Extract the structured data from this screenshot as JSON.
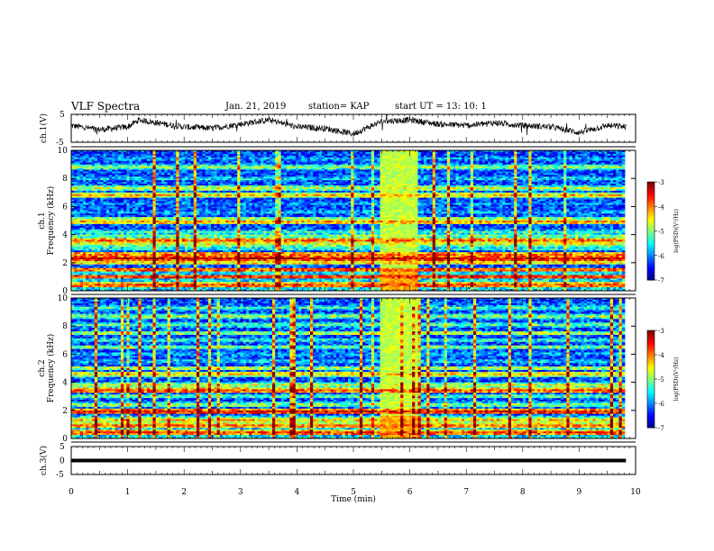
{
  "header": {
    "title": "VLF Spectra",
    "date": "Jan. 21, 2019",
    "station": "station= KAP",
    "start": "start  UT =  13: 10: 1"
  },
  "chart_data": [
    {
      "type": "line",
      "panel": "ch1-voltage",
      "ylabel": "ch.1(V)",
      "ylim": [
        -5,
        5
      ],
      "yticks": [
        "5",
        "-5"
      ],
      "xlim": [
        0,
        10
      ],
      "x_extent": [
        0,
        9.83
      ],
      "approx_series": {
        "x": [
          0,
          0.5,
          1,
          1.2,
          1.5,
          2,
          2.5,
          3,
          3.5,
          4,
          4.5,
          5,
          5.5,
          6,
          6.5,
          7,
          7.5,
          8,
          8.5,
          9,
          9.5,
          9.83
        ],
        "y": [
          1.0,
          -0.5,
          0.5,
          3.0,
          2.0,
          0.5,
          0.0,
          1.5,
          3.0,
          0.5,
          0.0,
          -2.0,
          2.5,
          3.0,
          1.5,
          1.0,
          2.0,
          1.0,
          0.5,
          -1.5,
          1.0,
          0.5
        ]
      }
    },
    {
      "type": "heatmap",
      "panel": "ch1-spectrogram",
      "ylabel": "ch.1",
      "ylabel2": "Frequency (kHz)",
      "xlim": [
        0,
        10
      ],
      "x_extent": [
        0,
        9.83
      ],
      "ylim": [
        0,
        10
      ],
      "yticks": [
        "0",
        "2",
        "4",
        "6",
        "8",
        "10"
      ],
      "color_scale": {
        "min": -7,
        "max": -3,
        "ticks": [
          "-3",
          "-4",
          "-5",
          "-6",
          "-7"
        ],
        "label": "log(PSD)(V²/Hz)"
      },
      "bright_window_min": [
        5.5,
        6.15
      ]
    },
    {
      "type": "heatmap",
      "panel": "ch2-spectrogram",
      "ylabel": "ch.2",
      "ylabel2": "Frequency (kHz)",
      "xlim": [
        0,
        10
      ],
      "x_extent": [
        0,
        9.83
      ],
      "ylim": [
        0,
        10
      ],
      "yticks": [
        "0",
        "2",
        "4",
        "6",
        "8",
        "10"
      ],
      "color_scale": {
        "min": -7,
        "max": -3,
        "ticks": [
          "-3",
          "-4",
          "-5",
          "-6",
          "-7"
        ],
        "label": "log(PSD)(V²/Hz)"
      },
      "bright_window_min": [
        5.5,
        6.15
      ]
    },
    {
      "type": "line",
      "panel": "ch3-voltage",
      "ylabel": "ch.3(V)",
      "ylim": [
        -5,
        5
      ],
      "yticks": [
        "5",
        "0",
        "-5"
      ],
      "xlim": [
        0,
        10
      ],
      "x_extent": [
        0,
        9.83
      ],
      "constant_y": 0
    }
  ],
  "xaxis": {
    "label": "Time  (min)",
    "ticks": [
      "0",
      "1",
      "2",
      "3",
      "4",
      "5",
      "6",
      "7",
      "8",
      "9",
      "10"
    ]
  }
}
